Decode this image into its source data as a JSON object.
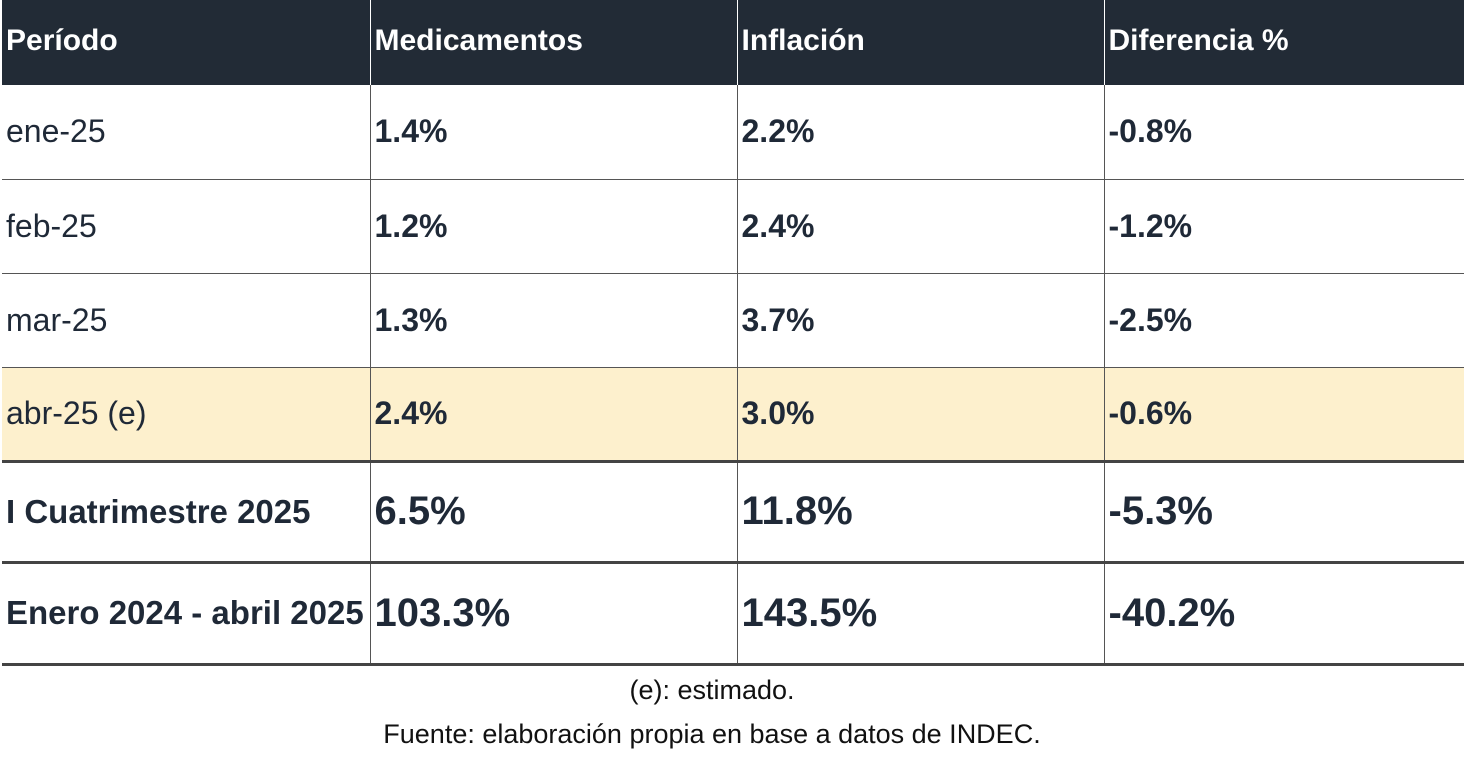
{
  "header": {
    "col1": "Período",
    "col2": "Medicamentos",
    "col3": "Inflación",
    "col4": "Diferencia %"
  },
  "rows": [
    {
      "period": "ene-25",
      "medicamentos": "1.4%",
      "inflacion": "2.2%",
      "diferencia": "-0.8%"
    },
    {
      "period": "feb-25",
      "medicamentos": "1.2%",
      "inflacion": "2.4%",
      "diferencia": "-1.2%"
    },
    {
      "period": "mar-25",
      "medicamentos": "1.3%",
      "inflacion": "3.7%",
      "diferencia": "-2.5%"
    },
    {
      "period": "abr-25 (e)",
      "medicamentos": "2.4%",
      "inflacion": "3.0%",
      "diferencia": "-0.6%"
    }
  ],
  "totals": [
    {
      "period": "I Cuatrimestre 2025",
      "medicamentos": "6.5%",
      "inflacion": "11.8%",
      "diferencia": "-5.3%"
    },
    {
      "period": "Enero 2024 - abril 2025",
      "medicamentos": "103.3%",
      "inflacion": "143.5%",
      "diferencia": "-40.2%"
    }
  ],
  "notes": {
    "estimate": "(e): estimado.",
    "source": "Fuente: elaboración propia en base a datos de INDEC."
  },
  "colors": {
    "header_bg": "#222b36",
    "highlight_bg": "#fdf0cd"
  }
}
